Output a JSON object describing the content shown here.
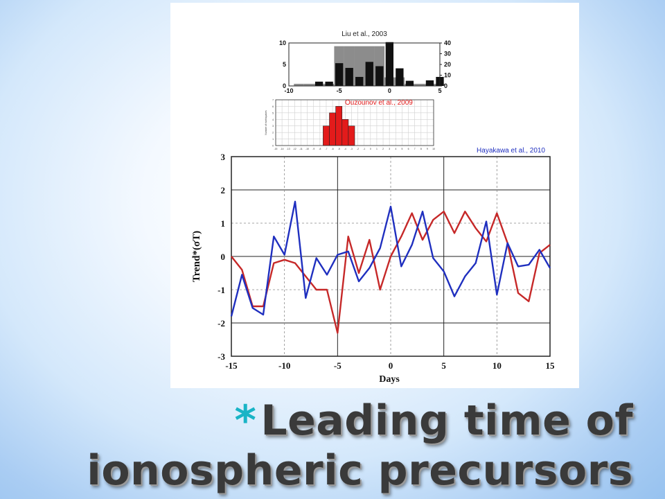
{
  "slide": {
    "title_bullet": "*",
    "title_line1": "Leading time of",
    "title_line2": "ionospheric precursors"
  },
  "chart_data": [
    {
      "type": "bar",
      "title": "Liu et al., 2003",
      "x_ticks": [
        "-10",
        "-5",
        "0",
        "5"
      ],
      "left_axis_ticks": [
        "0",
        "5",
        "10"
      ],
      "right_axis_ticks": [
        "0",
        "10",
        "20",
        "30",
        "40"
      ],
      "xlim": [
        -10,
        5
      ],
      "ylim_left": [
        0,
        10
      ],
      "ylim_right": [
        0,
        40
      ],
      "series": [
        {
          "color": "#8c8c8c",
          "axis": "right",
          "x": [
            -9,
            -8,
            -7,
            -6,
            -5,
            -4,
            -3,
            -2,
            -1,
            0,
            1,
            2,
            3,
            4,
            5
          ],
          "values": [
            2,
            2,
            2,
            2,
            37,
            37,
            37,
            37,
            37,
            8,
            8,
            2,
            2,
            2,
            2
          ]
        },
        {
          "color": "#111111",
          "axis": "left",
          "x": [
            -7,
            -6,
            -5,
            -4,
            -3,
            -2,
            -1,
            0,
            1,
            2,
            3,
            4,
            5
          ],
          "values": [
            1,
            1,
            5.3,
            4.2,
            2.1,
            5.6,
            4.6,
            10.2,
            4.1,
            1.2,
            0,
            1.3,
            2.1
          ]
        }
      ]
    },
    {
      "type": "bar",
      "title": "Ouzounov et al., 2009",
      "bar_color": "#e31b1b",
      "x": [
        -7,
        -6,
        -5,
        -4,
        -3
      ],
      "values": [
        3,
        5,
        6,
        4,
        3
      ],
      "ylim": [
        0,
        7
      ],
      "x_ticks": [
        "-15",
        "-14",
        "-13",
        "-12",
        "-11",
        "-10",
        "-9",
        "-8",
        "-7",
        "-6",
        "-5",
        "-4",
        "-3",
        "-2",
        "-1",
        "0",
        "1",
        "2",
        "3",
        "4",
        "5",
        "6",
        "7",
        "8",
        "9",
        "10"
      ],
      "y_ticks": [
        "0",
        "1",
        "2",
        "3",
        "4",
        "5",
        "6",
        "7"
      ],
      "ylabel": "Number of earthquakes"
    },
    {
      "type": "line",
      "title": "Hayakawa et al., 2010",
      "xlabel": "Days",
      "ylabel": "Trend*(σT)",
      "xlim": [
        -15,
        15
      ],
      "ylim": [
        -3,
        3
      ],
      "x_ticks": [
        "-15",
        "-10",
        "-5",
        "0",
        "5",
        "10",
        "15"
      ],
      "y_ticks": [
        "3",
        "2",
        "1",
        "0",
        "-1",
        "-2",
        "-3"
      ],
      "grid": true,
      "x": [
        -15,
        -14,
        -13,
        -12,
        -11,
        -10,
        -9,
        -8,
        -7,
        -6,
        -5,
        -4,
        -3,
        -2,
        -1,
        0,
        1,
        2,
        3,
        4,
        5,
        6,
        7,
        8,
        9,
        10,
        11,
        12,
        13,
        14,
        15
      ],
      "series": [
        {
          "color": "#c62828",
          "values": [
            0,
            -0.4,
            -1.5,
            -1.5,
            -0.2,
            -0.1,
            -0.2,
            -0.6,
            -1.0,
            -1.0,
            -2.3,
            0.6,
            -0.5,
            0.5,
            -1.0,
            0,
            0.6,
            1.3,
            0.5,
            1.1,
            1.35,
            0.7,
            1.35,
            0.85,
            0.45,
            1.3,
            0.4,
            -1.1,
            -1.35,
            0.1,
            0.35
          ]
        },
        {
          "color": "#1f2fbf",
          "values": [
            -1.8,
            -0.55,
            -1.55,
            -1.75,
            0.6,
            0.05,
            1.65,
            -1.25,
            -0.05,
            -0.55,
            0.05,
            0.15,
            -0.75,
            -0.35,
            0.25,
            1.5,
            -0.3,
            0.35,
            1.35,
            -0.05,
            -0.45,
            -1.2,
            -0.6,
            -0.2,
            1.05,
            -1.15,
            0.4,
            -0.3,
            -0.25,
            0.2,
            -0.35
          ]
        }
      ]
    }
  ]
}
